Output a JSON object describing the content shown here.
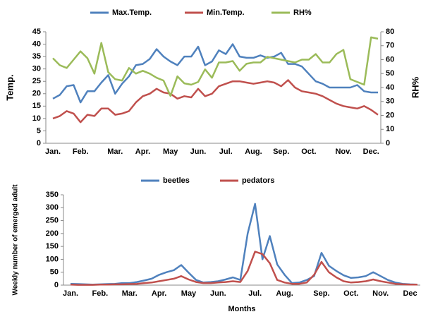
{
  "chart_data": [
    {
      "type": "line",
      "y_label": "Temp.",
      "y2_label": "RH%",
      "categories": [
        "Jan.",
        null,
        null,
        null,
        "Feb.",
        null,
        null,
        null,
        null,
        "Mar.",
        null,
        null,
        null,
        "Apr.",
        null,
        null,
        null,
        "May",
        null,
        null,
        null,
        "Jun.",
        null,
        null,
        null,
        "Jul.",
        null,
        null,
        null,
        "Aug.",
        null,
        null,
        null,
        "Sep.",
        null,
        null,
        null,
        "Oct.",
        null,
        null,
        null,
        null,
        "Nov.",
        null,
        null,
        null,
        "Dec.",
        null
      ],
      "ylim": [
        0,
        45
      ],
      "yticks": [
        0,
        5,
        10,
        15,
        20,
        25,
        30,
        35,
        40,
        45
      ],
      "y2lim": [
        0,
        80
      ],
      "y2ticks": [
        0,
        10,
        20,
        30,
        40,
        50,
        60,
        70,
        80
      ],
      "series": [
        {
          "name": "Max.Temp.",
          "color": "#4f81bd",
          "values": [
            18,
            19.5,
            23,
            23.5,
            16.5,
            21,
            21,
            24.5,
            27.5,
            20,
            24,
            27,
            31.5,
            32,
            34,
            38,
            35,
            33,
            31.5,
            35,
            35,
            39,
            31.5,
            33,
            37.5,
            36,
            40,
            35,
            34.5,
            34.5,
            35.5,
            34.5,
            35,
            36.5,
            32,
            32,
            31,
            28,
            25,
            24,
            22.5,
            22.5,
            22.5,
            22.5,
            23.5,
            21,
            20.5,
            20.5
          ]
        },
        {
          "name": "Min.Temp.",
          "color": "#c0504d",
          "values": [
            10,
            11,
            13,
            12,
            8.5,
            11.5,
            11,
            14,
            14,
            11.5,
            12,
            13,
            16.5,
            19,
            20,
            22,
            20.5,
            20,
            18,
            19,
            18.5,
            22,
            19,
            20,
            23,
            24,
            25,
            25,
            24.5,
            24,
            24.5,
            25,
            24.5,
            23,
            25.5,
            22.5,
            21,
            20.5,
            20,
            19,
            17.5,
            16,
            15,
            14.5,
            14,
            15,
            13.5,
            11.5
          ]
        },
        {
          "name": "RH%",
          "color": "#9bbb59",
          "axis": "y2",
          "values": [
            61,
            56,
            54,
            60,
            66,
            61,
            50,
            72,
            51,
            46,
            45,
            54,
            50,
            52,
            50,
            47,
            45,
            34,
            48,
            43,
            42,
            44,
            53,
            47,
            58,
            58,
            59,
            52,
            57,
            58,
            58,
            62,
            61,
            60,
            59,
            58,
            60,
            60,
            64,
            58,
            58,
            64,
            67,
            46,
            44,
            42,
            76,
            75
          ]
        }
      ]
    },
    {
      "type": "line",
      "x_label": "Months",
      "y_label": "Weekly number of emerged adult",
      "categories": [
        "Jan.",
        null,
        null,
        null,
        "Feb.",
        null,
        null,
        null,
        "Mar.",
        null,
        null,
        null,
        "Apr.",
        null,
        null,
        null,
        "May",
        null,
        null,
        null,
        "Jun.",
        null,
        null,
        null,
        null,
        "Jul.",
        null,
        null,
        null,
        "Aug.",
        null,
        null,
        null,
        null,
        "Sep.",
        null,
        null,
        null,
        "Oct.",
        null,
        null,
        null,
        "Nov.",
        null,
        null,
        null,
        "Dec",
        null
      ],
      "ylim": [
        0,
        350
      ],
      "yticks": [
        0,
        50,
        100,
        150,
        200,
        250,
        300,
        350
      ],
      "series": [
        {
          "name": "beetles",
          "color": "#4f81bd",
          "values": [
            5,
            4,
            3,
            2,
            3,
            4,
            5,
            8,
            8,
            12,
            18,
            25,
            40,
            50,
            58,
            78,
            48,
            20,
            10,
            12,
            15,
            22,
            30,
            20,
            200,
            315,
            100,
            190,
            80,
            40,
            8,
            10,
            20,
            35,
            125,
            75,
            55,
            38,
            28,
            30,
            35,
            50,
            35,
            20,
            10,
            5,
            3,
            2
          ]
        },
        {
          "name": "pedators",
          "color": "#c0504d",
          "values": [
            2,
            1,
            1,
            1,
            2,
            2,
            3,
            3,
            4,
            5,
            8,
            10,
            15,
            20,
            25,
            35,
            22,
            12,
            8,
            8,
            10,
            12,
            15,
            12,
            55,
            130,
            120,
            85,
            20,
            10,
            5,
            5,
            10,
            40,
            90,
            50,
            30,
            15,
            10,
            12,
            15,
            22,
            15,
            10,
            5,
            3,
            2,
            2
          ]
        }
      ]
    }
  ]
}
